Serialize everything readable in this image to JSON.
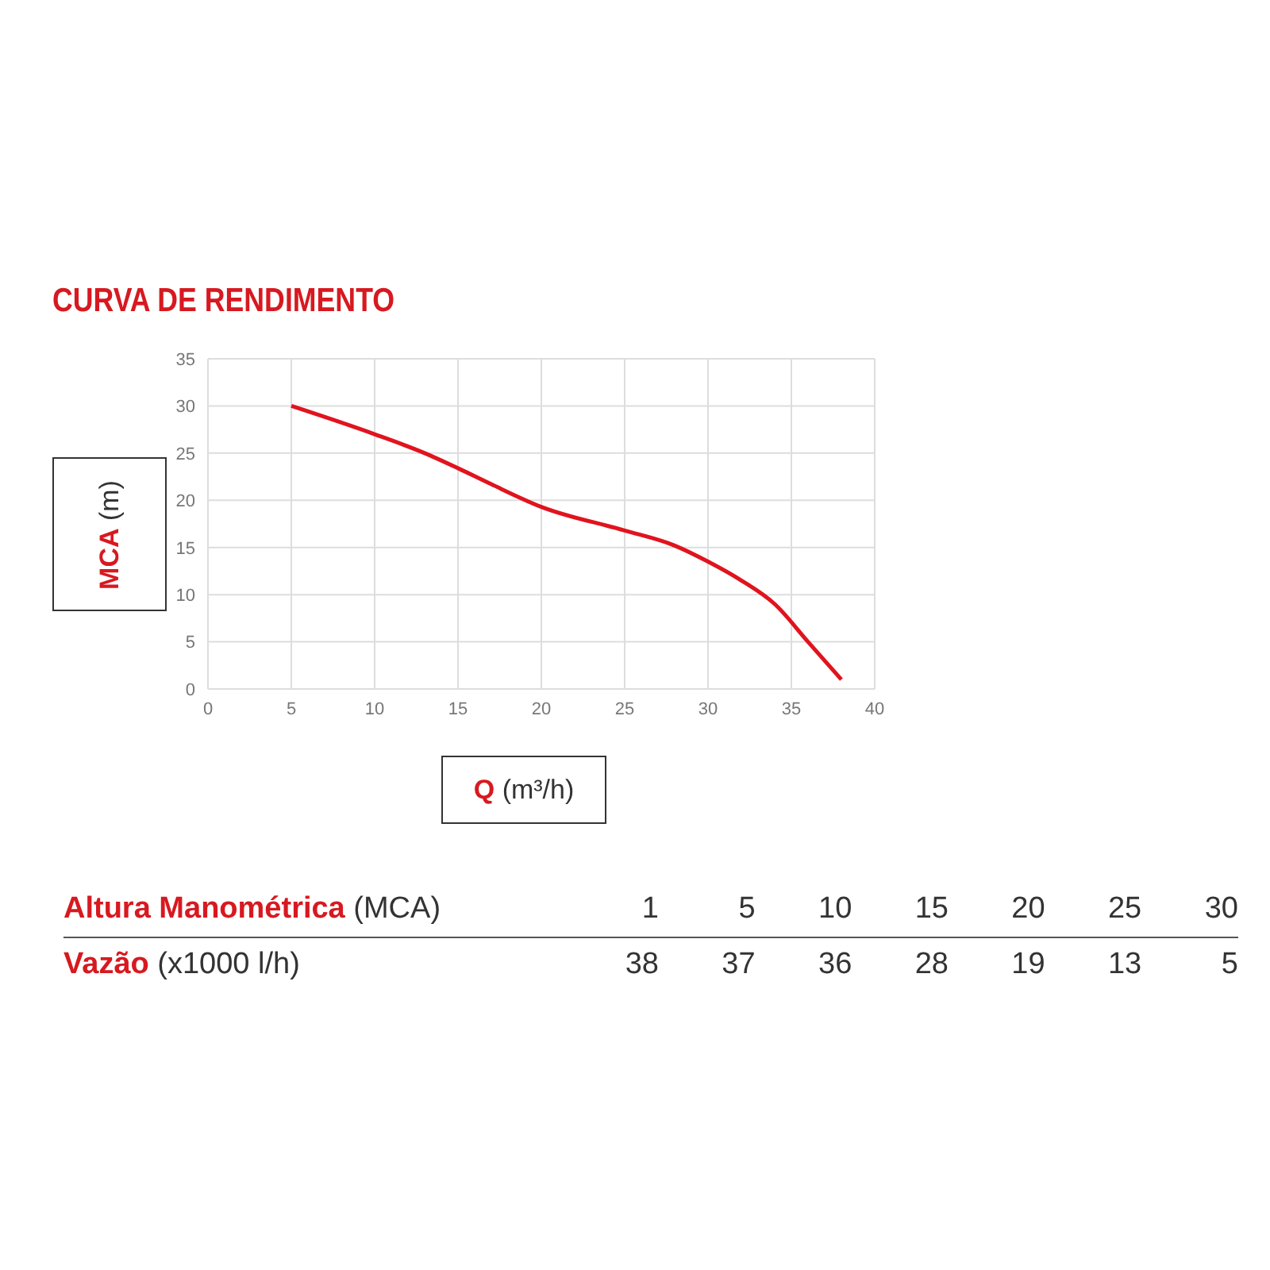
{
  "chart_data": {
    "type": "line",
    "title": "CURVA DE RENDIMENTO",
    "xlabel": "Q (m³/h)",
    "ylabel": "MCA (m)",
    "x": [
      5,
      10,
      13,
      15,
      17,
      20,
      25,
      28,
      30,
      32,
      34,
      36,
      38
    ],
    "series": [
      {
        "color": "#e0141e",
        "values": [
          30,
          27,
          25,
          23.4,
          21.7,
          19.3,
          16.8,
          15.2,
          13.5,
          11.5,
          9,
          5,
          1
        ]
      }
    ],
    "xlim": [
      0,
      40
    ],
    "xticks": [
      0,
      5,
      10,
      15,
      20,
      25,
      30,
      35,
      40
    ],
    "ylim": [
      0,
      35
    ],
    "yticks": [
      0,
      5,
      10,
      15,
      20,
      25,
      30,
      35
    ],
    "grid": true,
    "legend": false,
    "marker": "none",
    "line_style": "solid",
    "annotations": [
      "Altura Manométrica (MCA)",
      "1",
      "5",
      "10",
      "15",
      "20",
      "25",
      "30",
      "Vazão (x1000 l/h)",
      "38",
      "37",
      "36",
      "28",
      "19",
      "13",
      "5"
    ]
  }
}
